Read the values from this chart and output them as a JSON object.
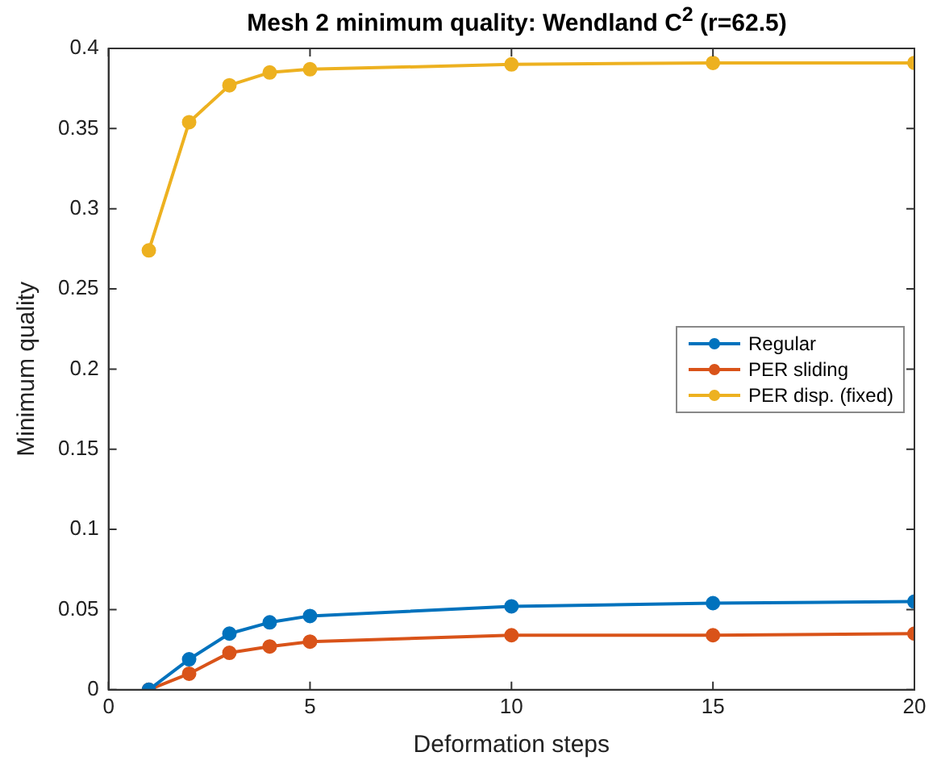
{
  "chart_data": {
    "type": "line",
    "title": "Mesh 2 minimum quality: Wendland C$^{2}$ (r=62.5)",
    "xlabel": "Deformation steps",
    "ylabel": "Minimum quality",
    "x": [
      1,
      2,
      3,
      4,
      5,
      10,
      15,
      20
    ],
    "series": [
      {
        "name": "Regular",
        "color": "#0072bd",
        "values": [
          0,
          0.019,
          0.035,
          0.042,
          0.046,
          0.052,
          0.054,
          0.055
        ]
      },
      {
        "name": "PER sliding",
        "color": "#d95319",
        "values": [
          0,
          0.01,
          0.023,
          0.027,
          0.03,
          0.034,
          0.034,
          0.035
        ]
      },
      {
        "name": "PER disp. (fixed)",
        "color": "#edb120",
        "values": [
          0.274,
          0.354,
          0.377,
          0.385,
          0.387,
          0.39,
          0.391,
          0.391
        ]
      }
    ],
    "xlim": [
      0,
      20
    ],
    "xticks": [
      0,
      5,
      10,
      15,
      20
    ],
    "ylim": [
      0,
      0.4
    ],
    "yticks": [
      0,
      0.05,
      0.1,
      0.15,
      0.2,
      0.25,
      0.3,
      0.35,
      0.4
    ],
    "grid": false,
    "legend": "right",
    "marker": "circle",
    "line_style": "solid"
  }
}
